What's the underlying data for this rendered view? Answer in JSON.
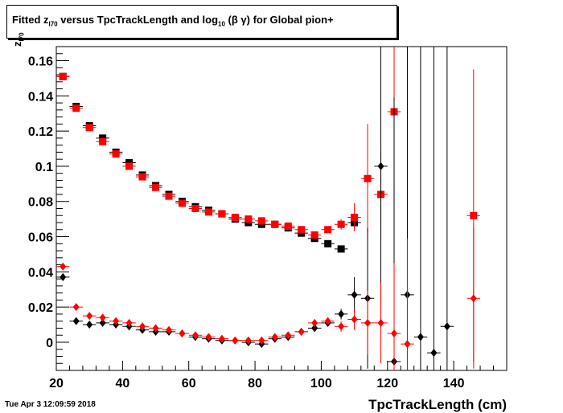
{
  "title": {
    "prefix": "Fitted  z",
    "sub1": "I70",
    "middle": "  versus TpcTrackLength and log",
    "sub2": "10",
    "suffix": " (β γ) for Global pion+"
  },
  "ylabel": {
    "main": "z",
    "sub": "I70"
  },
  "xlabel": "TpcTrackLength (cm)",
  "datestamp": "Tue Apr  3 12:09:59 2018",
  "colors": {
    "black": "#000000",
    "red": "#ff0000"
  },
  "chart_data": {
    "type": "scatter",
    "title": "Fitted z_I70 versus TpcTrackLength and log10 (β γ) for Global pion+",
    "xlabel": "TpcTrackLength (cm)",
    "ylabel": "z_I70",
    "xlim": [
      20,
      156
    ],
    "ylim": [
      -0.016,
      0.168
    ],
    "xticks": [
      20,
      40,
      60,
      80,
      100,
      120,
      140
    ],
    "xtick_labels": [
      "20",
      "40",
      "60",
      "80",
      "100",
      "120",
      "140"
    ],
    "yticks": [
      0,
      0.02,
      0.04,
      0.06,
      0.08,
      0.1,
      0.12,
      0.14,
      0.16
    ],
    "ytick_labels": [
      "0",
      "0.02",
      "0.04",
      "0.06",
      "0.08",
      "0.1",
      "0.12",
      "0.14",
      "0.16"
    ],
    "grid": false,
    "series": [
      {
        "color": "#000000",
        "marker": "square",
        "x": [
          22,
          26,
          30,
          34,
          38,
          42,
          46,
          50,
          54,
          58,
          62,
          66,
          70,
          74,
          78,
          82,
          86,
          90,
          94,
          98,
          102,
          106,
          110
        ],
        "y": [
          0.151,
          0.134,
          0.123,
          0.116,
          0.108,
          0.102,
          0.095,
          0.089,
          0.084,
          0.08,
          0.077,
          0.075,
          0.073,
          0.07,
          0.068,
          0.067,
          0.067,
          0.065,
          0.062,
          0.059,
          0.056,
          0.053,
          0.068
        ],
        "err": [
          0.001,
          0.001,
          0.001,
          0.001,
          0.001,
          0.001,
          0.001,
          0.001,
          0.001,
          0.001,
          0.001,
          0.001,
          0.001,
          0.001,
          0.001,
          0.001,
          0.001,
          0.001,
          0.001,
          0.001,
          0.001,
          0.002,
          0.003
        ]
      },
      {
        "color": "#ff0000",
        "marker": "square",
        "x": [
          22,
          26,
          30,
          34,
          38,
          42,
          46,
          50,
          54,
          58,
          62,
          66,
          70,
          74,
          78,
          82,
          86,
          90,
          94,
          98,
          102,
          106,
          110,
          114,
          118,
          122,
          146
        ],
        "y": [
          0.151,
          0.133,
          0.122,
          0.114,
          0.107,
          0.1,
          0.094,
          0.088,
          0.083,
          0.079,
          0.076,
          0.074,
          0.073,
          0.071,
          0.07,
          0.069,
          0.067,
          0.066,
          0.064,
          0.061,
          0.064,
          0.067,
          0.071,
          0.093,
          0.084,
          0.131,
          0.072
        ],
        "err": [
          0.001,
          0.001,
          0.001,
          0.001,
          0.001,
          0.001,
          0.001,
          0.001,
          0.001,
          0.001,
          0.001,
          0.001,
          0.001,
          0.001,
          0.001,
          0.001,
          0.001,
          0.001,
          0.001,
          0.002,
          0.002,
          0.003,
          0.008,
          0.031,
          0.025,
          0.06,
          0.083
        ]
      },
      {
        "color": "#000000",
        "marker": "diamond",
        "x": [
          22,
          26,
          30,
          34,
          38,
          42,
          46,
          50,
          54,
          58,
          62,
          66,
          70,
          74,
          78,
          82,
          86,
          90,
          94,
          98,
          102,
          106,
          110,
          114,
          118,
          122,
          126,
          130,
          134,
          138
        ],
        "y": [
          0.037,
          0.012,
          0.01,
          0.011,
          0.01,
          0.009,
          0.007,
          0.006,
          0.006,
          0.005,
          0.003,
          0.002,
          0.001,
          0.001,
          0.0,
          -0.001,
          0.002,
          0.003,
          0.006,
          0.008,
          0.011,
          0.016,
          0.027,
          0.025,
          0.1,
          -0.011,
          0.027,
          0.003,
          -0.006,
          0.009
        ],
        "err": [
          0.001,
          0.001,
          0.001,
          0.001,
          0.001,
          0.001,
          0.001,
          0.001,
          0.001,
          0.001,
          0.001,
          0.001,
          0.001,
          0.001,
          0.001,
          0.001,
          0.001,
          0.001,
          0.001,
          0.001,
          0.002,
          0.003,
          0.01,
          0.04,
          0.09,
          0.15,
          0.2,
          0.2,
          0.2,
          0.2
        ]
      },
      {
        "color": "#ff0000",
        "marker": "diamond",
        "x": [
          22,
          26,
          30,
          34,
          38,
          42,
          46,
          50,
          54,
          58,
          62,
          66,
          70,
          74,
          78,
          82,
          86,
          90,
          94,
          98,
          102,
          106,
          110,
          114,
          118,
          122,
          126,
          146
        ],
        "y": [
          0.043,
          0.02,
          0.015,
          0.014,
          0.012,
          0.011,
          0.009,
          0.008,
          0.007,
          0.005,
          0.004,
          0.003,
          0.002,
          0.001,
          0.001,
          0.001,
          0.003,
          0.004,
          0.006,
          0.011,
          0.012,
          0.009,
          0.013,
          0.011,
          0.011,
          0.005,
          -0.001,
          0.025
        ],
        "err": [
          0.001,
          0.001,
          0.001,
          0.001,
          0.001,
          0.001,
          0.001,
          0.001,
          0.001,
          0.001,
          0.001,
          0.001,
          0.001,
          0.001,
          0.001,
          0.001,
          0.001,
          0.001,
          0.001,
          0.002,
          0.002,
          0.003,
          0.006,
          0.018,
          0.023,
          0.04,
          0.06,
          0.04
        ]
      }
    ]
  }
}
